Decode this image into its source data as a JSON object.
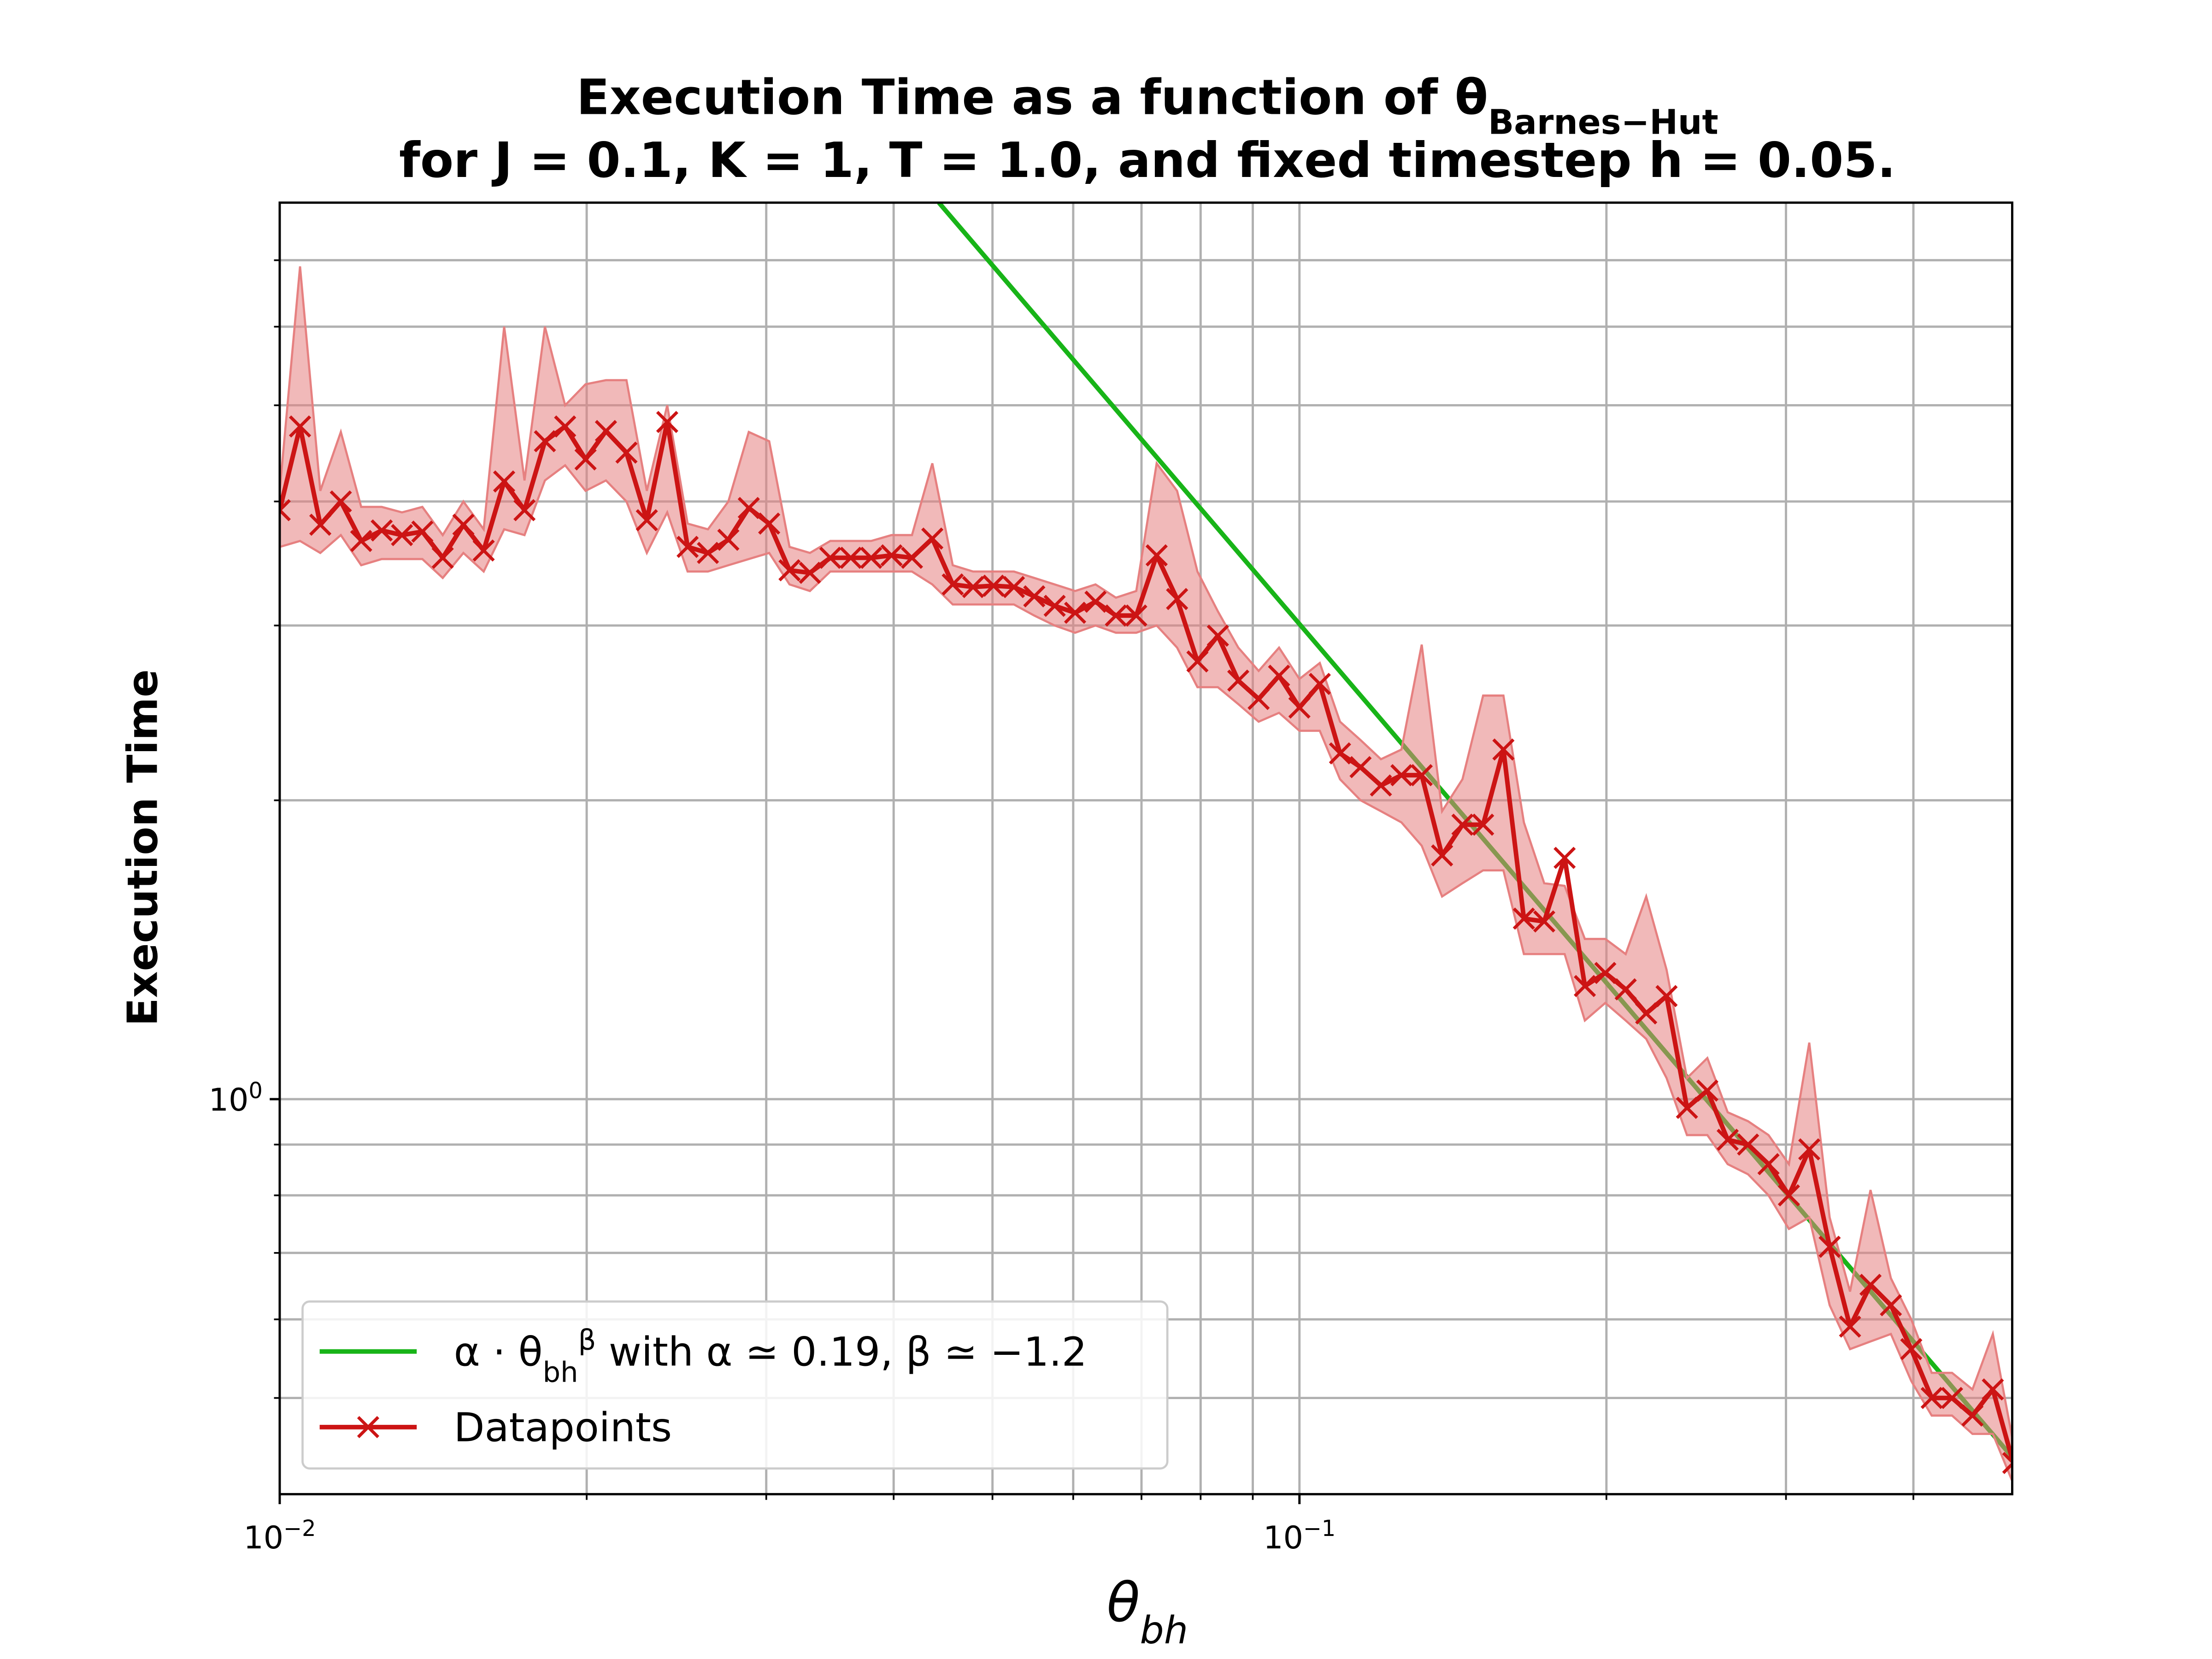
{
  "chart_data": {
    "type": "line",
    "title": [
      "Execution Time as a function of θ_{Barnes−Hut}",
      "for J = 0.1, K = 1, T = 1.0, and fixed timestep h = 0.05."
    ],
    "xlabel": "θ_{bh}",
    "ylabel": "Execution Time",
    "xscale": "log",
    "yscale": "log",
    "grid": true,
    "legend": "lower left",
    "xlim": [
      0.01,
      0.5
    ],
    "ylim": [
      0.4,
      8
    ],
    "xticks": [
      {
        "value": 0.01,
        "label": "10^{−2}"
      },
      {
        "value": 0.1,
        "label": "10^{−1}"
      }
    ],
    "xminorticks": [
      0.02,
      0.03,
      0.04,
      0.05,
      0.06,
      0.07,
      0.08,
      0.09,
      0.2,
      0.3,
      0.4
    ],
    "yticks": [
      {
        "value": 1,
        "label": "10^{0}"
      }
    ],
    "yminorticks": [
      0.5,
      0.6,
      0.7,
      0.8,
      0.9,
      2,
      3,
      4,
      5,
      6,
      7
    ],
    "x": [
      0.01,
      0.01047,
      0.01096,
      0.01148,
      0.01202,
      0.01259,
      0.01318,
      0.0138,
      0.01445,
      0.01514,
      0.01585,
      0.0166,
      0.01738,
      0.0182,
      0.01905,
      0.01995,
      0.02089,
      0.02188,
      0.02291,
      0.02399,
      0.02512,
      0.0263,
      0.02754,
      0.02884,
      0.0302,
      0.03162,
      0.03311,
      0.03467,
      0.03631,
      0.03802,
      0.03981,
      0.04169,
      0.04365,
      0.04571,
      0.04786,
      0.05012,
      0.05248,
      0.05495,
      0.05754,
      0.06026,
      0.0631,
      0.06607,
      0.06918,
      0.07244,
      0.07586,
      0.07943,
      0.08318,
      0.0871,
      0.0912,
      0.0955,
      0.1,
      0.1047,
      0.1096,
      0.1148,
      0.1202,
      0.1259,
      0.1318,
      0.138,
      0.1445,
      0.1514,
      0.1585,
      0.166,
      0.1738,
      0.182,
      0.1905,
      0.1995,
      0.2089,
      0.2188,
      0.2291,
      0.2399,
      0.2512,
      0.263,
      0.2754,
      0.2884,
      0.302,
      0.3162,
      0.3311,
      0.3467,
      0.3631,
      0.3802,
      0.3981,
      0.4169,
      0.4365,
      0.4571,
      0.4786,
      0.5012
    ],
    "series": [
      {
        "name": "α · θ_{bh}^{β} with α ≃ 0.19, β ≃ −1.2",
        "color": "#18b418",
        "x": [
          0.0443,
          0.5
        ],
        "values": [
          8,
          0.436
        ]
      },
      {
        "name": "Datapoints",
        "color": "#cc1414",
        "band_color": "#e68080",
        "values": [
          3.92,
          4.76,
          3.79,
          4.0,
          3.65,
          3.74,
          3.7,
          3.73,
          3.51,
          3.79,
          3.57,
          4.19,
          3.92,
          4.6,
          4.76,
          4.41,
          4.71,
          4.48,
          3.83,
          4.81,
          3.6,
          3.55,
          3.66,
          3.94,
          3.8,
          3.41,
          3.39,
          3.51,
          3.51,
          3.51,
          3.53,
          3.51,
          3.67,
          3.3,
          3.28,
          3.29,
          3.28,
          3.21,
          3.14,
          3.09,
          3.17,
          3.07,
          3.07,
          3.53,
          3.19,
          2.76,
          2.93,
          2.64,
          2.53,
          2.67,
          2.48,
          2.62,
          2.23,
          2.16,
          2.07,
          2.12,
          2.12,
          1.76,
          1.89,
          1.89,
          2.25,
          1.52,
          1.51,
          1.75,
          1.3,
          1.34,
          1.29,
          1.22,
          1.27,
          0.98,
          1.02,
          0.91,
          0.9,
          0.86,
          0.8,
          0.89,
          0.71,
          0.59,
          0.65,
          0.62,
          0.56,
          0.5,
          0.5,
          0.48,
          0.51,
          0.43
        ],
        "upper": [
          4.1,
          6.9,
          4.1,
          4.7,
          3.95,
          3.95,
          3.9,
          3.95,
          3.7,
          4.0,
          3.75,
          6.0,
          4.2,
          6.0,
          5.0,
          5.25,
          5.3,
          5.3,
          4.1,
          5.0,
          3.8,
          3.75,
          4.0,
          4.7,
          4.6,
          3.6,
          3.55,
          3.65,
          3.65,
          3.65,
          3.7,
          3.7,
          4.37,
          3.45,
          3.4,
          3.4,
          3.4,
          3.35,
          3.3,
          3.25,
          3.3,
          3.2,
          3.25,
          4.37,
          4.1,
          3.4,
          3.1,
          2.85,
          2.7,
          2.85,
          2.65,
          2.75,
          2.4,
          2.3,
          2.2,
          2.25,
          2.87,
          1.95,
          2.1,
          2.55,
          2.55,
          1.9,
          1.65,
          1.64,
          1.45,
          1.45,
          1.4,
          1.6,
          1.35,
          1.05,
          1.1,
          0.97,
          0.95,
          0.92,
          0.86,
          1.14,
          0.76,
          0.64,
          0.81,
          0.66,
          0.6,
          0.53,
          0.53,
          0.51,
          0.58,
          0.45
        ],
        "lower": [
          3.6,
          3.65,
          3.55,
          3.7,
          3.45,
          3.5,
          3.5,
          3.5,
          3.35,
          3.55,
          3.4,
          3.75,
          3.7,
          4.2,
          4.35,
          4.1,
          4.2,
          4.0,
          3.55,
          3.9,
          3.4,
          3.4,
          3.45,
          3.5,
          3.55,
          3.3,
          3.25,
          3.4,
          3.4,
          3.4,
          3.4,
          3.4,
          3.3,
          3.15,
          3.15,
          3.15,
          3.15,
          3.07,
          3.0,
          2.95,
          3.0,
          2.95,
          2.95,
          3.0,
          2.85,
          2.6,
          2.6,
          2.5,
          2.4,
          2.45,
          2.35,
          2.35,
          2.1,
          2.0,
          1.95,
          1.9,
          1.8,
          1.6,
          1.65,
          1.7,
          1.7,
          1.4,
          1.4,
          1.4,
          1.2,
          1.25,
          1.2,
          1.15,
          1.05,
          0.92,
          0.92,
          0.86,
          0.84,
          0.8,
          0.74,
          0.76,
          0.62,
          0.56,
          0.57,
          0.58,
          0.52,
          0.48,
          0.48,
          0.46,
          0.46,
          0.41
        ]
      }
    ]
  }
}
